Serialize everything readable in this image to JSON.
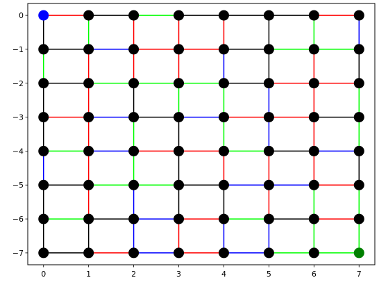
{
  "colors": {
    "red": "#ff0000",
    "green": "#00ff00",
    "blue": "#0000ff",
    "black": "#000000",
    "node": "#000000",
    "start": "#0000ff",
    "goal": "#008000",
    "axes": "#000000",
    "background": "#ffffff"
  },
  "chart_data": {
    "type": "scatter",
    "title": "",
    "xlabel": "",
    "ylabel": "",
    "grid": false,
    "x_ticks": [
      "0",
      "1",
      "2",
      "3",
      "4",
      "5",
      "6",
      "7"
    ],
    "y_ticks": [
      "0",
      "−1",
      "−2",
      "−3",
      "−4",
      "−5",
      "−6",
      "−7"
    ],
    "xlim": [
      -0.35,
      7.35
    ],
    "ylim": [
      -7.35,
      0.35
    ],
    "grid_size": 8,
    "start_node": [
      0,
      0
    ],
    "goal_node": [
      7,
      -7
    ],
    "horizontal_edge_colors": [
      [
        "red",
        "black",
        "green",
        "black",
        "black",
        "black",
        "red"
      ],
      [
        "black",
        "blue",
        "red",
        "red",
        "black",
        "green",
        "green"
      ],
      [
        "black",
        "green",
        "green",
        "green",
        "black",
        "red",
        "red"
      ],
      [
        "red",
        "blue",
        "black",
        "blue",
        "red",
        "red",
        "black"
      ],
      [
        "green",
        "blue",
        "red",
        "red",
        "green",
        "black",
        "blue"
      ],
      [
        "black",
        "green",
        "green",
        "black",
        "blue",
        "blue",
        "red"
      ],
      [
        "green",
        "black",
        "blue",
        "red",
        "green",
        "black",
        "red"
      ],
      [
        "black",
        "red",
        "blue",
        "red",
        "blue",
        "green",
        "green"
      ]
    ],
    "vertical_edge_colors": [
      [
        "black",
        "green",
        "red",
        "red",
        "red",
        "black",
        "green",
        "blue"
      ],
      [
        "green",
        "red",
        "red",
        "red",
        "blue",
        "black",
        "red",
        "black"
      ],
      [
        "black",
        "red",
        "black",
        "green",
        "green",
        "blue",
        "red",
        "green"
      ],
      [
        "black",
        "red",
        "green",
        "black",
        "green",
        "blue",
        "red",
        "green"
      ],
      [
        "blue",
        "red",
        "green",
        "black",
        "red",
        "red",
        "red",
        "black"
      ],
      [
        "black",
        "red",
        "blue",
        "black",
        "black",
        "red",
        "green",
        "green"
      ],
      [
        "black",
        "black",
        "blue",
        "red",
        "blue",
        "blue",
        "green",
        "green"
      ]
    ]
  }
}
